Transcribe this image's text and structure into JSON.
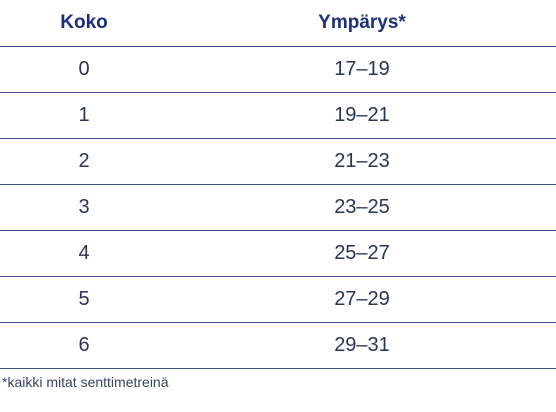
{
  "table": {
    "headers": [
      "Koko",
      "Ympärys*"
    ],
    "rows": [
      [
        "0",
        "17–19"
      ],
      [
        "1",
        "19–21"
      ],
      [
        "2",
        "21–23"
      ],
      [
        "3",
        "23–25"
      ],
      [
        "4",
        "25–27"
      ],
      [
        "5",
        "27–29"
      ],
      [
        "6",
        "29–31"
      ]
    ]
  },
  "footnote": "*kaikki mitat senttimetreinä",
  "colors": {
    "header_text": "#1c2f7a",
    "body_text": "#2a3456",
    "rule": "#3c4f86"
  }
}
